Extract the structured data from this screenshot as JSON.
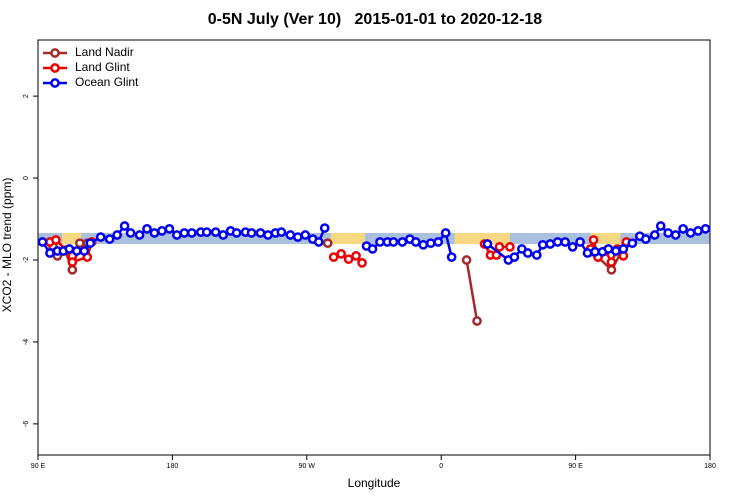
{
  "chart_data": {
    "type": "line",
    "title": "0-5N July (Ver 10)   2015-01-01 to 2020-12-18",
    "x_label": "Longitude",
    "y_label": "XCO2 - MLO trend (ppm)",
    "xlim": [
      90,
      540
    ],
    "ylim": [
      -6.76,
      3.37
    ],
    "xticks": [
      {
        "value": 90,
        "label": "90 E"
      },
      180,
      {
        "value": 270,
        "label": "90 W"
      },
      {
        "value": 360,
        "label": "0"
      },
      {
        "value": 450,
        "label": "90 E"
      },
      {
        "value": 540,
        "label": "180"
      }
    ],
    "yticks": [
      2,
      0,
      -2,
      -4,
      -6
    ],
    "legend": "top-left",
    "band": [
      -1.61,
      -1.34
    ],
    "band_color": "#a9c0de",
    "highlights": [
      [
        106,
        119
      ],
      [
        286,
        309
      ],
      [
        369,
        406
      ],
      [
        460,
        480
      ]
    ],
    "highlight_color": "#f7d882",
    "series": [
      {
        "name": "Land Nadir",
        "color": "#a52a2a",
        "x": [
          100,
          103,
          108,
          113,
          118,
          123,
          null,
          284,
          null,
          377,
          384,
          null,
          460,
          465,
          474,
          484
        ],
        "values": [
          -1.66,
          -1.9,
          -1.76,
          -2.24,
          -1.59,
          -1.59,
          null,
          -1.59,
          null,
          -2.0,
          -3.49,
          null,
          -1.8,
          -1.93,
          -2.24,
          -1.59
        ]
      },
      {
        "name": "Land Glint",
        "color": "#ee0000",
        "x": [
          98,
          102,
          109,
          113,
          113,
          123,
          126,
          null,
          288,
          293,
          298,
          303,
          307,
          null,
          389,
          393,
          397,
          399,
          406,
          null,
          460,
          462,
          465,
          470,
          474,
          478,
          482,
          484
        ],
        "values": [
          -1.56,
          -1.51,
          -1.76,
          -1.9,
          -2.05,
          -1.93,
          -1.56,
          null,
          -1.93,
          -1.85,
          -1.98,
          -1.9,
          -2.07,
          null,
          -1.61,
          -1.88,
          -1.88,
          -1.68,
          -1.68,
          null,
          -1.73,
          -1.51,
          -1.93,
          -1.78,
          -2.05,
          -1.73,
          -1.9,
          -1.56
        ]
      },
      {
        "name": "Ocean Glint",
        "color": "#0000ee",
        "x": [
          93,
          98,
          103,
          107,
          111,
          116,
          121,
          125,
          132,
          138,
          143,
          148,
          152,
          158,
          163,
          168,
          173,
          178,
          183,
          188,
          193,
          199,
          203,
          209,
          214,
          219,
          223,
          229,
          233,
          239,
          244,
          249,
          253,
          259,
          264,
          269,
          274,
          278,
          282,
          null,
          310,
          314,
          319,
          324,
          328,
          334,
          339,
          343,
          348,
          353,
          358,
          363,
          367,
          null,
          391,
          405,
          409,
          414,
          418,
          424,
          428,
          433,
          438,
          443,
          448,
          453,
          458,
          463,
          468,
          472,
          477,
          482,
          488,
          493,
          497,
          503,
          507,
          512,
          517,
          522,
          527,
          532,
          537
        ],
        "values": [
          -1.56,
          -1.83,
          -1.78,
          -1.78,
          -1.73,
          -1.78,
          -1.78,
          -1.59,
          -1.44,
          -1.49,
          -1.39,
          -1.17,
          -1.34,
          -1.39,
          -1.24,
          -1.34,
          -1.29,
          -1.24,
          -1.39,
          -1.34,
          -1.34,
          -1.32,
          -1.32,
          -1.32,
          -1.39,
          -1.29,
          -1.34,
          -1.32,
          -1.34,
          -1.34,
          -1.39,
          -1.34,
          -1.32,
          -1.39,
          -1.44,
          -1.39,
          -1.49,
          -1.56,
          -1.22,
          null,
          -1.66,
          -1.73,
          -1.56,
          -1.56,
          -1.56,
          -1.56,
          -1.49,
          -1.56,
          -1.63,
          -1.59,
          -1.56,
          -1.34,
          -1.93,
          null,
          -1.61,
          -2.0,
          -1.93,
          -1.73,
          -1.83,
          -1.88,
          -1.63,
          -1.61,
          -1.56,
          -1.56,
          -1.68,
          -1.56,
          -1.83,
          -1.8,
          -1.8,
          -1.73,
          -1.78,
          -1.73,
          -1.59,
          -1.42,
          -1.49,
          -1.39,
          -1.17,
          -1.34,
          -1.39,
          -1.24,
          -1.34,
          -1.29,
          -1.24
        ]
      }
    ]
  }
}
